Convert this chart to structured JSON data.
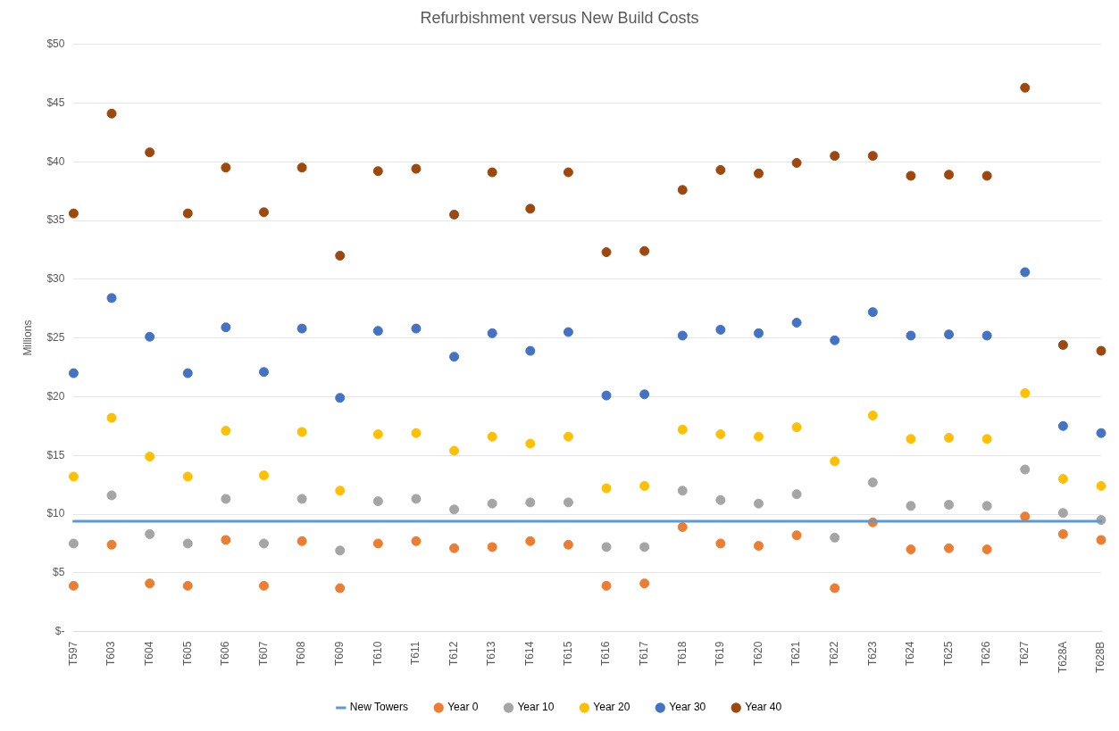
{
  "chart_data": {
    "type": "scatter",
    "title": "Refurbishment versus New Build Costs",
    "ylabel": "Millions",
    "categories": [
      "T597",
      "T603",
      "T604",
      "T605",
      "T606",
      "T607",
      "T608",
      "T609",
      "T610",
      "T611",
      "T612",
      "T613",
      "T614",
      "T615",
      "T616",
      "T617",
      "T618",
      "T619",
      "T620",
      "T621",
      "T622",
      "T623",
      "T624",
      "T625",
      "T626",
      "T627",
      "T628A",
      "T628B"
    ],
    "series": [
      {
        "name": "New Towers",
        "type": "line",
        "marker": "none",
        "color": "#5b9bd5",
        "values": [
          9.4,
          9.4,
          9.4,
          9.4,
          9.4,
          9.4,
          9.4,
          9.4,
          9.4,
          9.4,
          9.4,
          9.4,
          9.4,
          9.4,
          9.4,
          9.4,
          9.4,
          9.4,
          9.4,
          9.4,
          9.4,
          9.4,
          9.4,
          9.4,
          9.4,
          9.4,
          9.4,
          9.4
        ]
      },
      {
        "name": "Year 0",
        "color": "#ed7d31",
        "values": [
          3.9,
          7.4,
          4.1,
          3.9,
          7.8,
          3.9,
          7.7,
          3.7,
          7.5,
          7.7,
          7.1,
          7.2,
          7.7,
          7.4,
          3.9,
          4.1,
          8.9,
          7.5,
          7.3,
          8.2,
          3.7,
          9.3,
          7.0,
          7.1,
          7.0,
          9.8,
          8.3,
          7.8
        ]
      },
      {
        "name": "Year 10",
        "color": "#a5a5a5",
        "values": [
          7.5,
          11.6,
          8.3,
          7.5,
          11.3,
          7.5,
          11.3,
          6.9,
          11.1,
          11.3,
          10.4,
          10.9,
          11.0,
          11.0,
          7.2,
          7.2,
          12.0,
          11.2,
          10.9,
          11.7,
          8.0,
          12.7,
          10.7,
          10.8,
          10.7,
          13.8,
          10.1,
          9.5
        ]
      },
      {
        "name": "Year 20",
        "color": "#ffc000",
        "values": [
          13.2,
          18.2,
          14.9,
          13.2,
          17.1,
          13.3,
          17.0,
          12.0,
          16.8,
          16.9,
          15.4,
          16.6,
          16.0,
          16.6,
          12.2,
          12.4,
          17.2,
          16.8,
          16.6,
          17.4,
          14.5,
          18.4,
          16.4,
          16.5,
          16.4,
          20.3,
          13.0,
          12.4
        ]
      },
      {
        "name": "Year 30",
        "color": "#4472c4",
        "values": [
          22.0,
          28.4,
          25.1,
          22.0,
          25.9,
          22.1,
          25.8,
          19.9,
          25.6,
          25.8,
          23.4,
          25.4,
          23.9,
          25.5,
          20.1,
          20.2,
          25.2,
          25.7,
          25.4,
          26.3,
          24.8,
          27.2,
          25.2,
          25.3,
          25.2,
          30.6,
          17.5,
          16.9
        ]
      },
      {
        "name": "Year 40",
        "color": "#9e480e",
        "values": [
          35.6,
          44.1,
          40.8,
          35.6,
          39.5,
          35.7,
          39.5,
          32.0,
          39.2,
          39.4,
          35.5,
          39.1,
          36.0,
          39.1,
          32.3,
          32.4,
          37.6,
          39.3,
          39.0,
          39.9,
          40.5,
          40.5,
          38.8,
          38.9,
          38.8,
          46.3,
          24.4,
          23.9
        ]
      }
    ],
    "ylim": [
      0,
      50
    ],
    "yticks": [
      {
        "value": 0,
        "label": "$-"
      },
      {
        "value": 5,
        "label": "$5"
      },
      {
        "value": 10,
        "label": "$10"
      },
      {
        "value": 15,
        "label": "$15"
      },
      {
        "value": 20,
        "label": "$20"
      },
      {
        "value": 25,
        "label": "$25"
      },
      {
        "value": 30,
        "label": "$30"
      },
      {
        "value": 35,
        "label": "$35"
      },
      {
        "value": 40,
        "label": "$40"
      },
      {
        "value": 45,
        "label": "$45"
      },
      {
        "value": 50,
        "label": "$50"
      }
    ],
    "grid": "y",
    "legend": "bottom",
    "marker": "circle",
    "line_style": "solid"
  }
}
